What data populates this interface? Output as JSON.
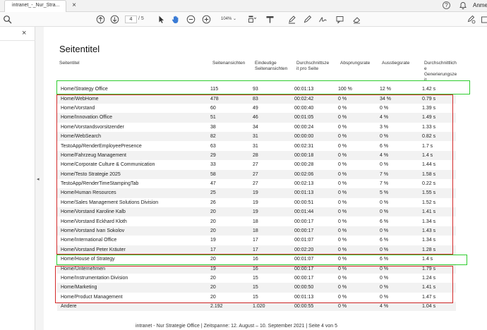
{
  "tab": {
    "title": "intranet_-_Nur_Stra...",
    "close": "×"
  },
  "topright": {
    "help": "?",
    "user": "Anme"
  },
  "toolbar": {
    "page_current": "4",
    "page_total": "/ 5",
    "zoom": "104% ⌄"
  },
  "sidebar": {
    "close": "×",
    "collapse": "◂"
  },
  "report": {
    "title": "Seitentitel",
    "headers": {
      "page": "Seitentitel",
      "views": "Seitenansichten",
      "unique": "Eindeutige\nSeitenansichten",
      "avg_time": "Durchschnittsze\nit pro Seite",
      "bounce": "Absprungsrate",
      "exit": "Ausstiegsrate",
      "gen_time": "Durchschnittlich\ne\nGenerierungsze\nit"
    },
    "rows": [
      [
        "Home/Strategy Office",
        "115",
        "93",
        "00:01:13",
        "100 %",
        "12 %",
        "1.42 s"
      ],
      [
        "Home/WebHome",
        "478",
        "83",
        "00:02:42",
        "0 %",
        "34 %",
        "0.79 s"
      ],
      [
        "Home/Vorstand",
        "60",
        "49",
        "00:00:40",
        "0 %",
        "0 %",
        "1.39 s"
      ],
      [
        "Home/Innovation Office",
        "51",
        "46",
        "00:01:05",
        "0 %",
        "4 %",
        "1.49 s"
      ],
      [
        "Home/Vorstandsvorsitzender",
        "38",
        "34",
        "00:00:24",
        "0 %",
        "3 %",
        "1.33 s"
      ],
      [
        "Home/WebSearch",
        "82",
        "31",
        "00:00:00",
        "0 %",
        "0 %",
        "0.82 s"
      ],
      [
        "TestoApp/RenderEmployeePresence",
        "63",
        "31",
        "00:02:31",
        "0 %",
        "6 %",
        "1.7 s"
      ],
      [
        "Home/Fahrzeug Management",
        "29",
        "28",
        "00:00:18",
        "0 %",
        "4 %",
        "1.4 s"
      ],
      [
        "Home/Corporate Culture & Communication",
        "33",
        "27",
        "00:00:28",
        "0 %",
        "0 %",
        "1.44 s"
      ],
      [
        "Home/Testo Strategie 2025",
        "58",
        "27",
        "00:02:06",
        "0 %",
        "7 %",
        "1.58 s"
      ],
      [
        "TestoApp/RenderTimeStampingTab",
        "47",
        "27",
        "00:02:13",
        "0 %",
        "7 %",
        "0.22 s"
      ],
      [
        "Home/Human Resources",
        "25",
        "19",
        "00:01:13",
        "0 %",
        "5 %",
        "1.55 s"
      ],
      [
        "Home/Sales Management Solutions Division",
        "26",
        "19",
        "00:00:51",
        "0 %",
        "0 %",
        "1.52 s"
      ],
      [
        "Home/Vorstand Karoline Kalb",
        "20",
        "19",
        "00:01:44",
        "0 %",
        "0 %",
        "1.41 s"
      ],
      [
        "Home/Vorstand Eckhard Kloth",
        "20",
        "18",
        "00:00:17",
        "0 %",
        "6 %",
        "1.34 s"
      ],
      [
        "Home/Vorstand Ivan Sokolov",
        "20",
        "18",
        "00:00:17",
        "0 %",
        "0 %",
        "1.43 s"
      ],
      [
        "Home/International Office",
        "19",
        "17",
        "00:01:07",
        "0 %",
        "6 %",
        "1.34 s"
      ],
      [
        "Home/Vorstand Peter Kräuter",
        "17",
        "17",
        "00:02:20",
        "0 %",
        "0 %",
        "1.28 s"
      ],
      [
        "Home/House of Strategy",
        "20",
        "16",
        "00:01:07",
        "0 %",
        "6 %",
        "1.4 s"
      ],
      [
        "Home/Unternehmen",
        "19",
        "16",
        "00:00:17",
        "0 %",
        "0 %",
        "1.79 s"
      ],
      [
        "Home/Instrumentation Division",
        "20",
        "15",
        "00:00:17",
        "0 %",
        "0 %",
        "1.24 s"
      ],
      [
        "Home/Marketing",
        "20",
        "15",
        "00:00:50",
        "0 %",
        "0 %",
        "1.41 s"
      ],
      [
        "Home/Product Management",
        "20",
        "15",
        "00:01:13",
        "0 %",
        "0 %",
        "1.47 s"
      ],
      [
        "Andere",
        "2.192",
        "1.020",
        "00:00:55",
        "0 %",
        "4 %",
        "1.04 s"
      ]
    ],
    "footer": "intranet - Nur Strategie Office | Zeitspanne: 12. August – 10. September 2021 | Seite 4 von 5"
  },
  "colors": {
    "highlight_green": "#2ecc2e",
    "highlight_red": "#d42a2a",
    "row_shade": "#f2f2f2"
  }
}
